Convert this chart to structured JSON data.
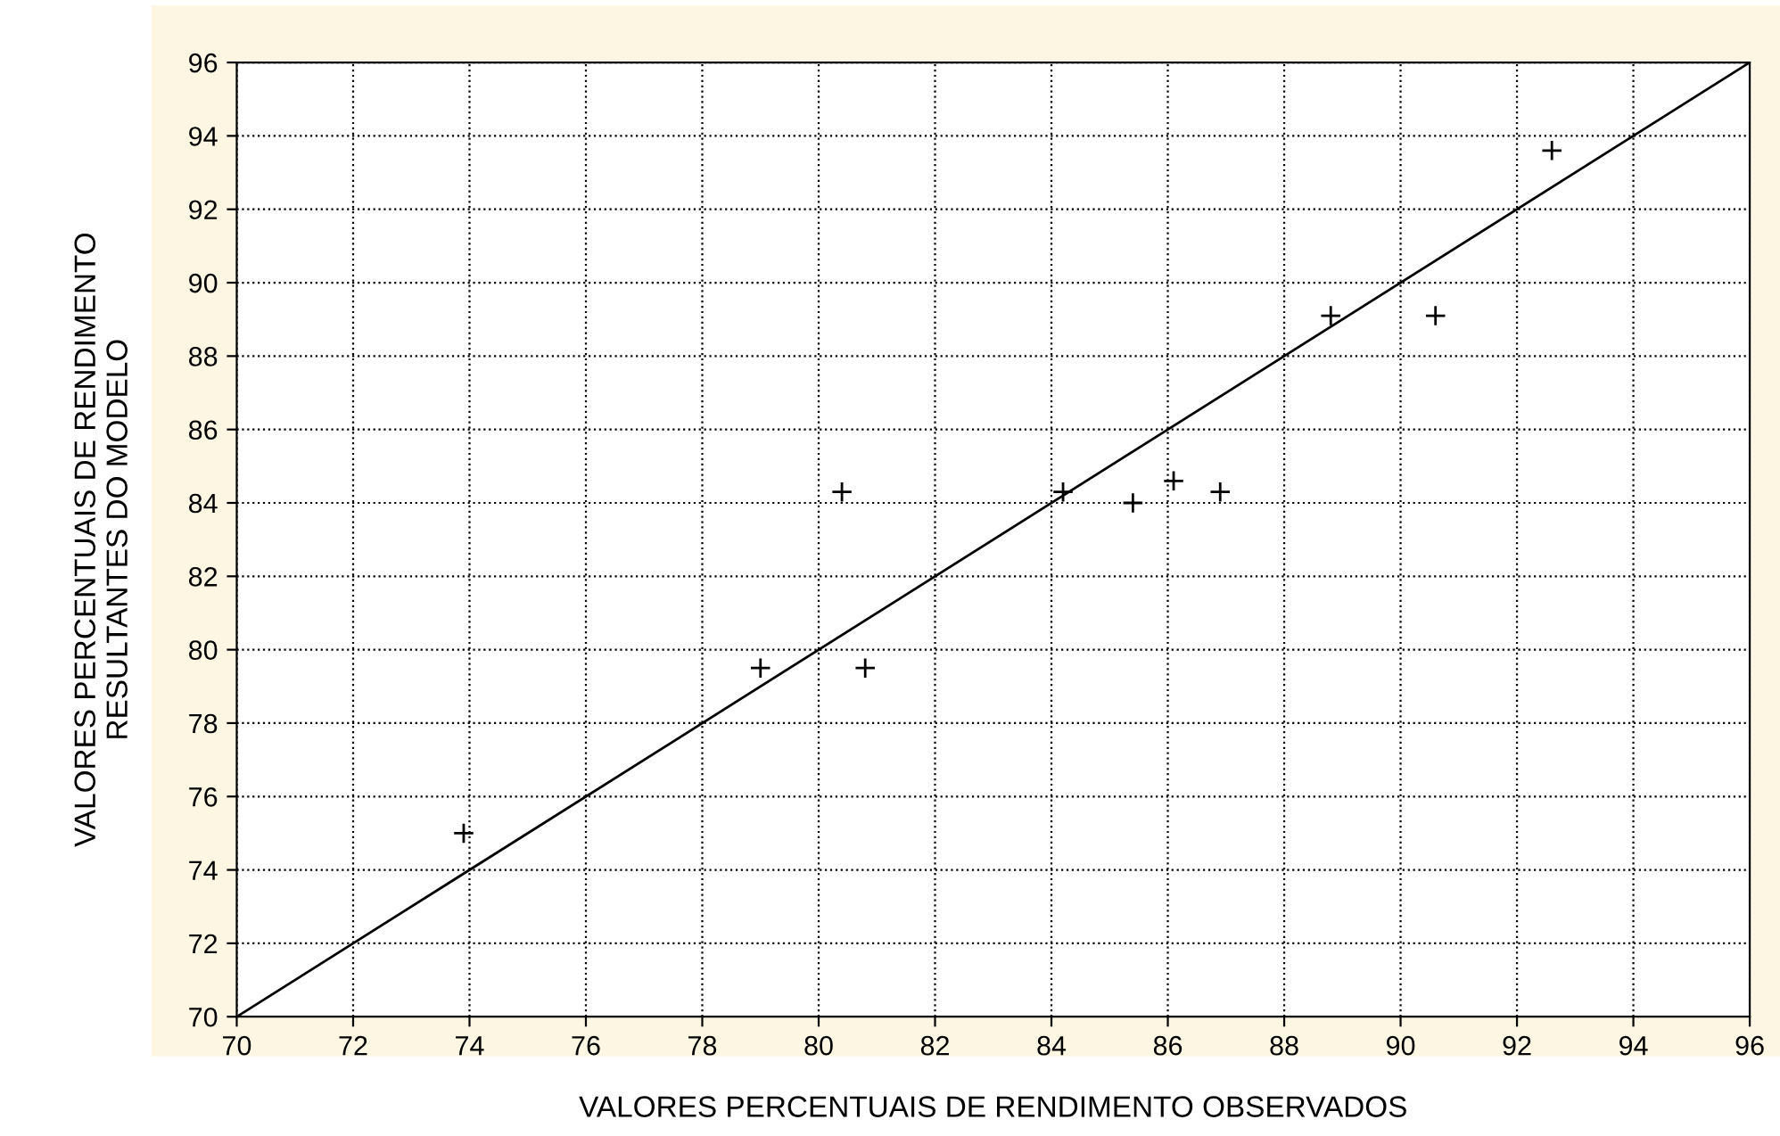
{
  "chart_data": {
    "type": "scatter",
    "xlabel": "VALORES PERCENTUAIS DE RENDIMENTO OBSERVADOS",
    "ylabel": "VALORES PERCENTUAIS DE RENDIMENTO\nRESULTANTES DO MODELO",
    "series": [
      {
        "color": "#000000",
        "marker": "cross",
        "x": [
          73.9,
          79.0,
          80.8,
          80.4,
          84.2,
          85.4,
          86.1,
          86.9,
          88.8,
          90.6,
          92.6
        ],
        "values": [
          75.0,
          79.5,
          79.5,
          84.3,
          84.3,
          84.0,
          84.6,
          84.3,
          89.1,
          89.1,
          93.6
        ]
      },
      {
        "type": "line",
        "color": "#000000",
        "line_style": "solid",
        "x": [
          70,
          96
        ],
        "values": [
          70,
          96
        ]
      }
    ],
    "xlim": [
      70,
      96
    ],
    "xticks": [
      70,
      72,
      74,
      76,
      78,
      80,
      82,
      84,
      86,
      88,
      90,
      92,
      94,
      96
    ],
    "ylim": [
      70,
      96
    ],
    "yticks": [
      70,
      72,
      74,
      76,
      78,
      80,
      82,
      84,
      86,
      88,
      90,
      92,
      94,
      96
    ],
    "grid": true
  }
}
